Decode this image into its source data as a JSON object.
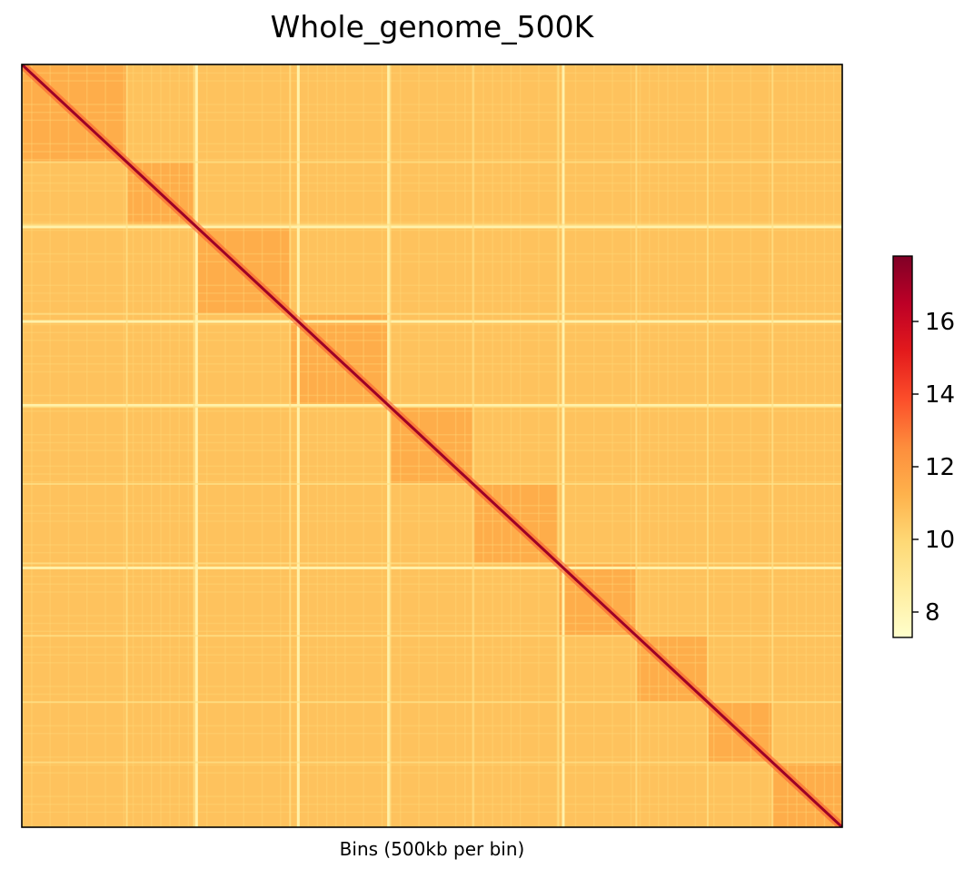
{
  "chart_data": {
    "type": "heatmap",
    "title": "Whole_genome_500K",
    "xlabel": "Bins (500kb per bin)",
    "ylabel": "",
    "colormap": "YlOrRd",
    "colorbar": {
      "range": [
        7.3,
        17.8
      ],
      "ticks": [
        8,
        10,
        12,
        14,
        16
      ],
      "placement": "right"
    },
    "background_value": 10.7,
    "diagonal_value": 17.2,
    "chromosome_boundaries_fraction": [
      0.128,
      0.21,
      0.327,
      0.449,
      0.55,
      0.654,
      0.749,
      0.836,
      0.915
    ],
    "low_coverage_bins_fraction": [
      0.213,
      0.337,
      0.447,
      0.66
    ]
  },
  "colors": {
    "colormap_stops": [
      "#ffffcc",
      "#ffeda0",
      "#fed976",
      "#feb24c",
      "#fd8d3c",
      "#fc4e2a",
      "#e31a1c",
      "#bd0026",
      "#800026"
    ]
  }
}
